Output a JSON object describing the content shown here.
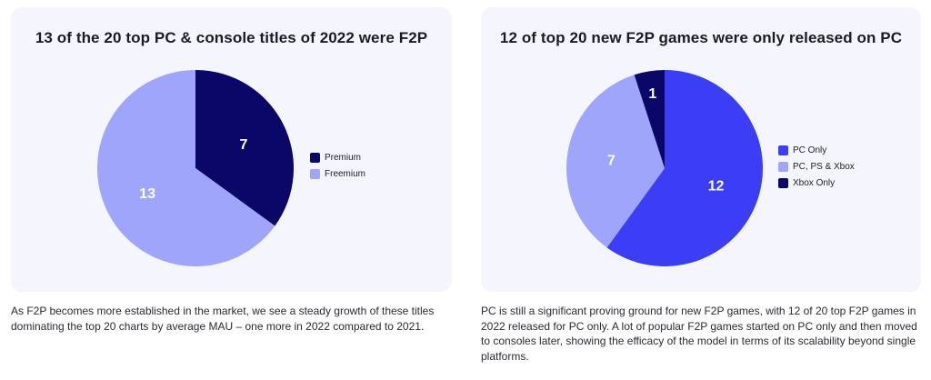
{
  "chart_data": [
    {
      "type": "pie",
      "title": "13 of the 20 top PC & console titles of 2022 were F2P",
      "categories": [
        "Premium",
        "Freemium"
      ],
      "values": [
        7,
        13
      ],
      "colors": [
        "#0a0769",
        "#9ea5fb"
      ],
      "legend": "right",
      "start_angle": "12 o'clock, clockwise"
    },
    {
      "type": "pie",
      "title": "12 of top 20 new F2P games were only released on PC",
      "categories": [
        "PC Only",
        "PC, PS & Xbox",
        "Xbox Only"
      ],
      "values": [
        12,
        7,
        1
      ],
      "colors": [
        "#3b3ef5",
        "#9ea5fb",
        "#0a0769"
      ],
      "legend": "right",
      "start_angle": "12 o'clock, clockwise"
    }
  ],
  "captions": {
    "left": "As F2P becomes more established in the market, we see a steady growth of these titles dominating the top 20 charts by average MAU – one more in 2022 compared to 2021.",
    "right": "PC is still a significant proving ground for new F2P games, with 12 of 20 top F2P games in 2022 released for PC only. A lot of popular F2P games started on PC only and then moved to consoles later, showing the efficacy of the model in terms of its scalability beyond single platforms."
  }
}
